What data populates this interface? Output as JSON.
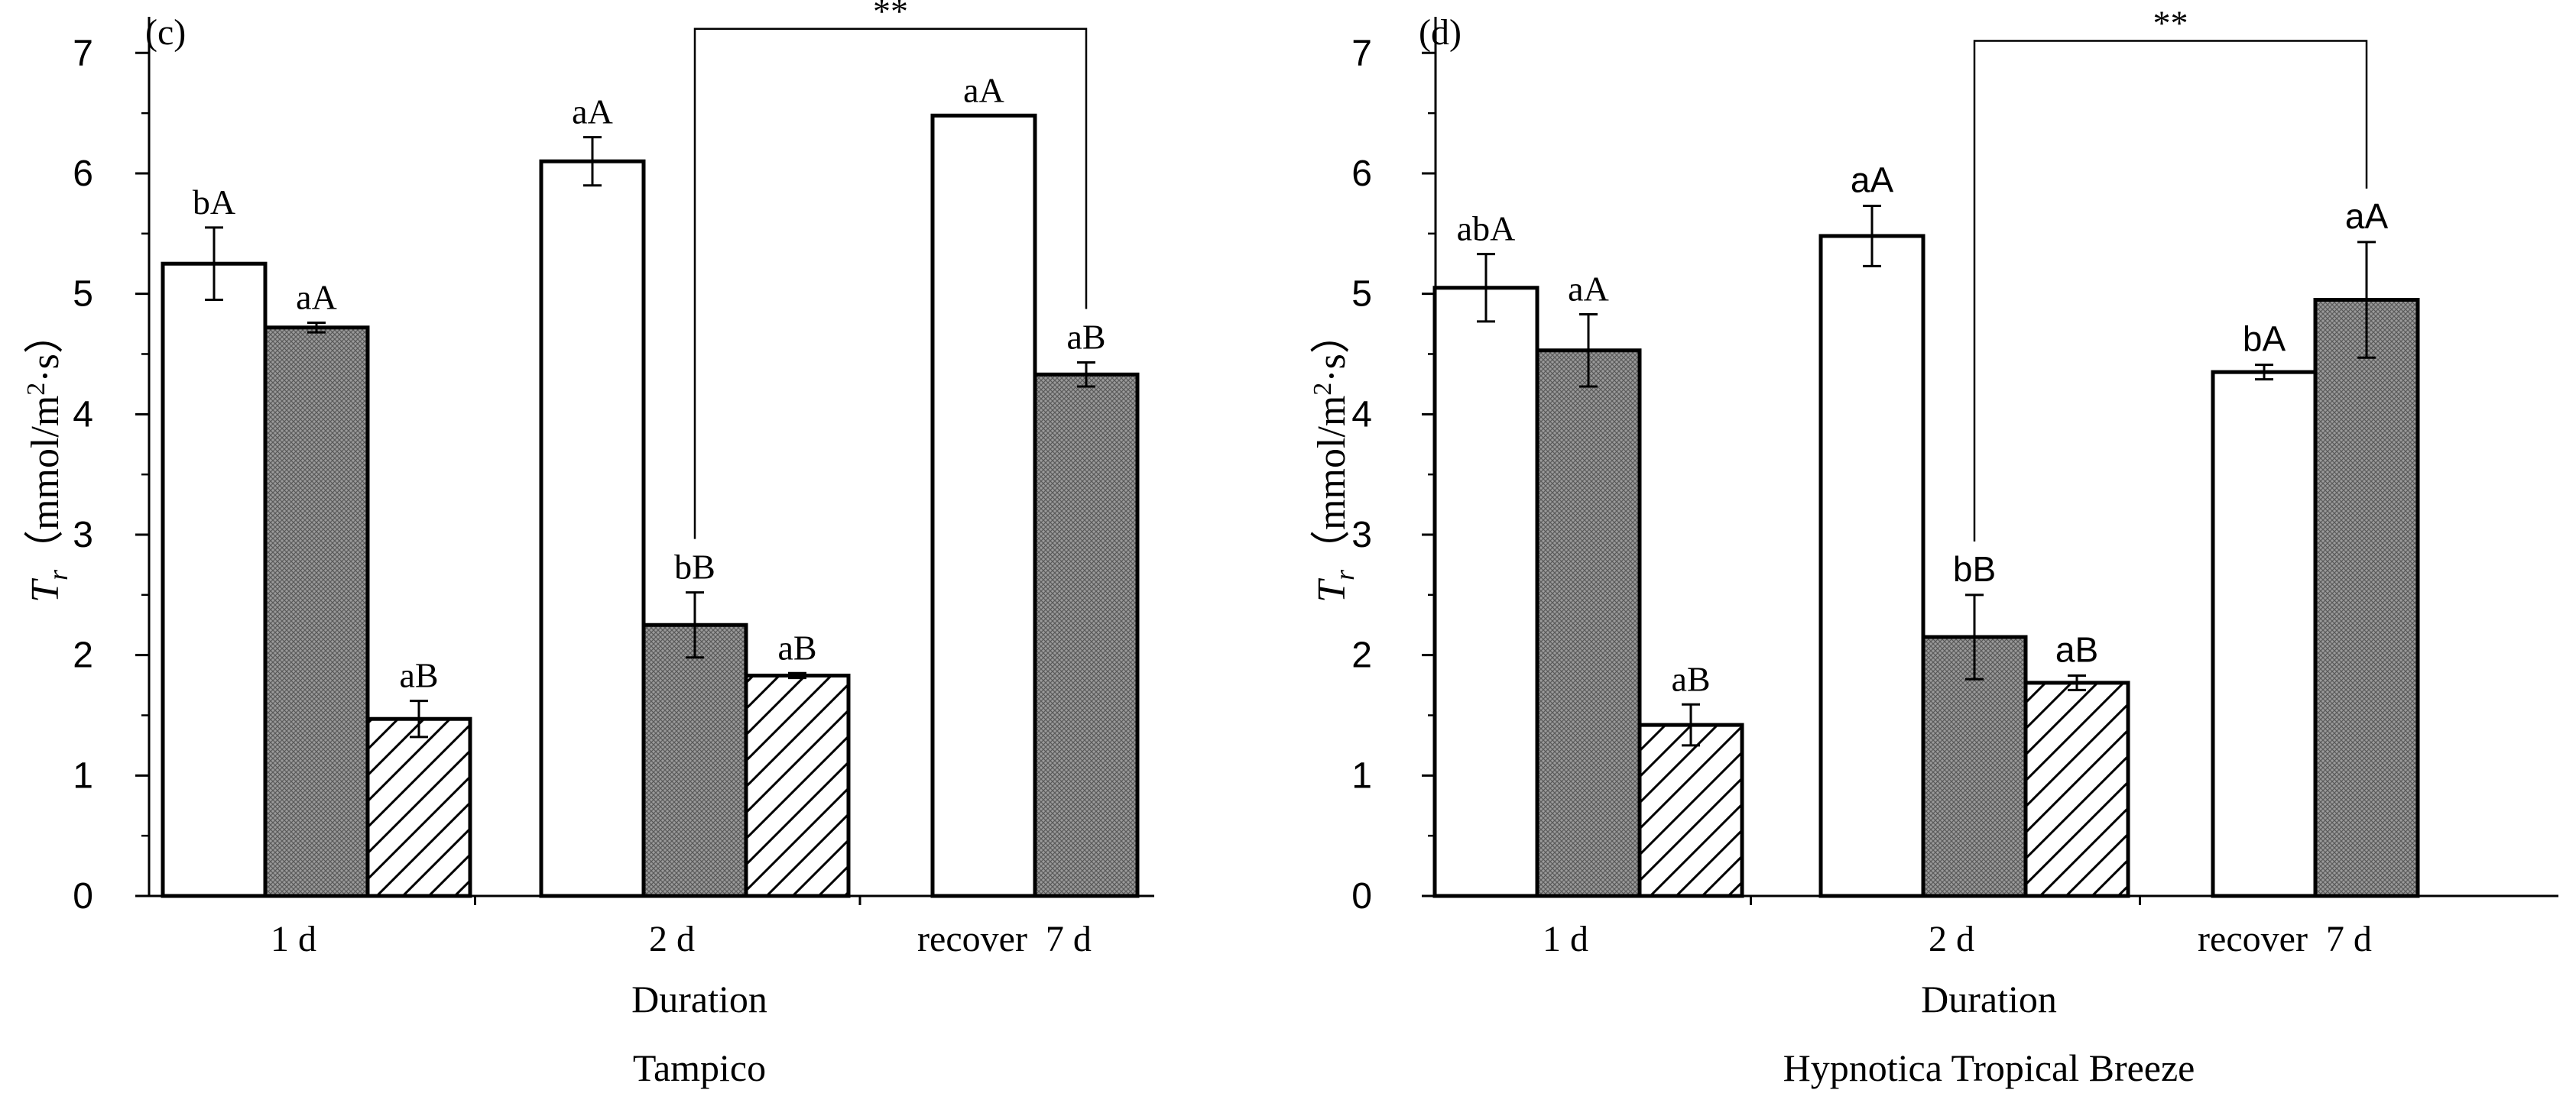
{
  "chart_data": [
    {
      "type": "bar",
      "panel_label": "(c)",
      "title": "Tampico",
      "xlabel": "Duration",
      "ylabel_main": "T",
      "ylabel_sub": "r",
      "ylabel_units_pre": "（mmol/m",
      "ylabel_units_sup": "2",
      "ylabel_units_post": "·s）",
      "ylim": [
        0,
        7.3
      ],
      "yticks": [
        "0",
        "1",
        "2",
        "3",
        "4",
        "5",
        "6",
        "7"
      ],
      "categories": [
        "1 d",
        "2 d",
        "recover  7 d"
      ],
      "series": [
        {
          "name": "open",
          "fill": "white",
          "values": [
            5.25,
            6.1,
            6.48
          ],
          "errors": [
            0.3,
            0.2,
            0
          ],
          "labels": [
            "bA",
            "aA",
            "aA"
          ]
        },
        {
          "name": "cross-hatched",
          "fill": "crosshatch",
          "values": [
            4.72,
            2.25,
            4.33
          ],
          "errors": [
            0.04,
            0.27,
            0.1
          ],
          "labels": [
            "aA",
            "bB",
            "aB"
          ]
        },
        {
          "name": "diagonal-hatched",
          "fill": "diagonal",
          "values": [
            1.47,
            1.83,
            null
          ],
          "errors": [
            0.15,
            0.02,
            null
          ],
          "labels": [
            "aB",
            "aB",
            null
          ]
        }
      ],
      "significance": {
        "label": "**",
        "from_category": 1,
        "from_series": 1,
        "to_category": 2,
        "to_series": 1,
        "y": 7.2
      }
    },
    {
      "type": "bar",
      "panel_label": "(d)",
      "title": "Hypnotica Tropical Breeze",
      "xlabel": "Duration",
      "ylabel_main": "T",
      "ylabel_sub": "r",
      "ylabel_units_pre": "（mmol/m",
      "ylabel_units_sup": "2",
      "ylabel_units_post": "·s）",
      "ylim": [
        0,
        7.3
      ],
      "yticks": [
        "0",
        "1",
        "2",
        "3",
        "4",
        "5",
        "6",
        "7"
      ],
      "categories": [
        "1 d",
        "2 d",
        "recover  7 d"
      ],
      "series": [
        {
          "name": "open",
          "fill": "white",
          "values": [
            5.05,
            5.48,
            4.35
          ],
          "errors": [
            0.28,
            0.25,
            0.06
          ],
          "labels": [
            "abA",
            "aA",
            "bA"
          ]
        },
        {
          "name": "cross-hatched",
          "fill": "crosshatch",
          "values": [
            4.53,
            2.15,
            4.95
          ],
          "errors": [
            0.3,
            0.35,
            0.48
          ],
          "labels": [
            "aA",
            "bB",
            "aA"
          ]
        },
        {
          "name": "diagonal-hatched",
          "fill": "diagonal",
          "values": [
            1.42,
            1.77,
            null
          ],
          "errors": [
            0.17,
            0.06,
            null
          ],
          "labels": [
            "aB",
            "aB",
            null
          ]
        }
      ],
      "significance": {
        "label": "**",
        "from_category": 1,
        "from_series": 1,
        "to_category": 2,
        "to_series": 1,
        "y": 7.1
      }
    }
  ]
}
